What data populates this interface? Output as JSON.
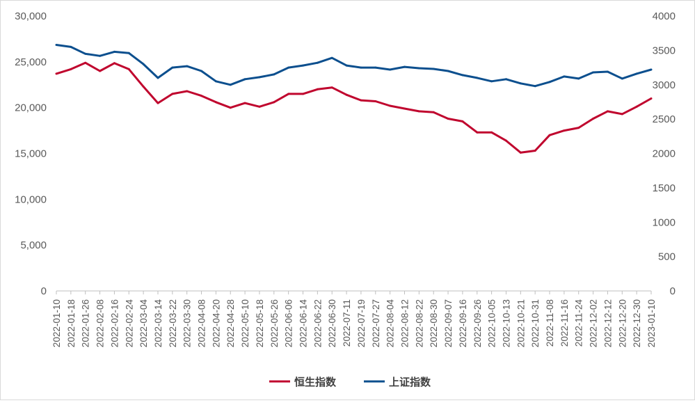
{
  "chart_data": {
    "type": "line",
    "title": "",
    "x": [
      "2022-01-10",
      "2022-01-18",
      "2022-01-26",
      "2022-02-08",
      "2022-02-16",
      "2022-02-24",
      "2022-03-04",
      "2022-03-14",
      "2022-03-22",
      "2022-03-30",
      "2022-04-08",
      "2022-04-20",
      "2022-04-28",
      "2022-05-10",
      "2022-05-18",
      "2022-05-26",
      "2022-06-06",
      "2022-06-14",
      "2022-06-22",
      "2022-06-30",
      "2022-07-11",
      "2022-07-19",
      "2022-07-27",
      "2022-08-04",
      "2022-08-12",
      "2022-08-22",
      "2022-08-30",
      "2022-09-07",
      "2022-09-16",
      "2022-09-26",
      "2022-10-05",
      "2022-10-13",
      "2022-10-21",
      "2022-10-31",
      "2022-11-08",
      "2022-11-16",
      "2022-11-24",
      "2022-12-02",
      "2022-12-12",
      "2022-12-20",
      "2022-12-30",
      "2023-01-10"
    ],
    "y_left": {
      "min": 0,
      "max": 30000,
      "ticks": [
        "0",
        "5,000",
        "10,000",
        "15,000",
        "20,000",
        "25,000",
        "30,000"
      ]
    },
    "y_right": {
      "min": 0,
      "max": 4000,
      "ticks": [
        "0",
        "500",
        "1000",
        "1500",
        "2000",
        "2500",
        "3000",
        "3500",
        "4000"
      ]
    },
    "grid": false,
    "legend_position": "bottom",
    "series": [
      {
        "name": "恒生指数",
        "axis": "left",
        "color": "#c0062e",
        "values": [
          23700,
          24200,
          24900,
          24000,
          24850,
          24200,
          22300,
          20500,
          21500,
          21800,
          21300,
          20600,
          20000,
          20500,
          20100,
          20600,
          21500,
          21500,
          22000,
          22200,
          21400,
          20800,
          20700,
          20200,
          19900,
          19600,
          19500,
          18800,
          18500,
          17300,
          17300,
          16400,
          15100,
          15300,
          17000,
          17500,
          17800,
          18800,
          19600,
          19300,
          20100,
          21000
        ]
      },
      {
        "name": "上证指数",
        "axis": "right",
        "color": "#0c4f8e",
        "values": [
          3580,
          3550,
          3450,
          3420,
          3480,
          3460,
          3300,
          3100,
          3250,
          3270,
          3200,
          3050,
          3000,
          3080,
          3110,
          3150,
          3250,
          3280,
          3320,
          3390,
          3280,
          3250,
          3250,
          3220,
          3260,
          3240,
          3230,
          3200,
          3140,
          3100,
          3050,
          3080,
          3020,
          2980,
          3040,
          3120,
          3090,
          3180,
          3190,
          3090,
          3160,
          3220
        ]
      }
    ]
  }
}
